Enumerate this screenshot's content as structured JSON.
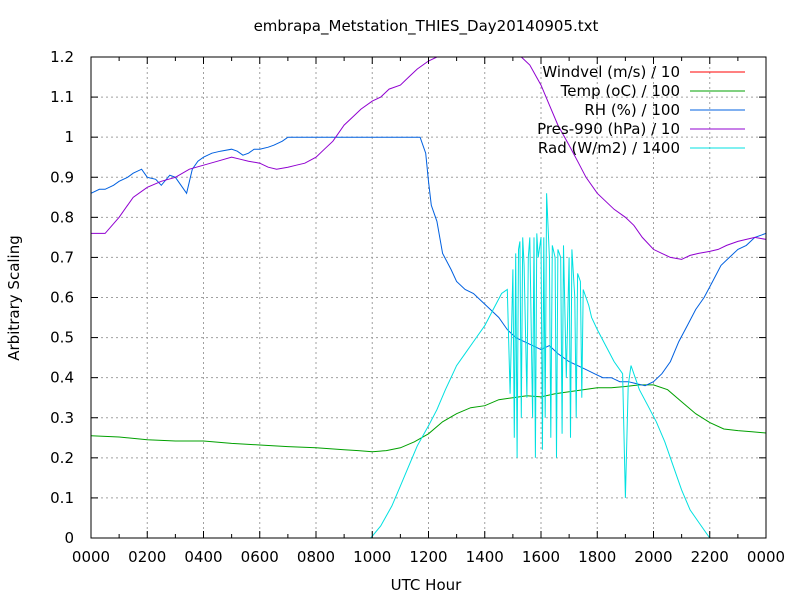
{
  "chart_data": {
    "type": "line",
    "title": "embrapa_Metstation_THIES_Day20140905.txt",
    "xlabel": "UTC Hour",
    "ylabel": "Arbitrary Scaling",
    "xlim": [
      0,
      24
    ],
    "ylim": [
      0,
      1.2
    ],
    "grid": true,
    "legend_position": "top-right",
    "x_tick_labels": [
      "0000",
      "0200",
      "0400",
      "0600",
      "0800",
      "1000",
      "1200",
      "1400",
      "1600",
      "1800",
      "2000",
      "2200",
      "0000"
    ],
    "y_tick_labels": [
      "0",
      "0.1",
      "0.2",
      "0.3",
      "0.4",
      "0.5",
      "0.6",
      "0.7",
      "0.8",
      "0.9",
      "1",
      "1.1",
      "1.2"
    ],
    "series": [
      {
        "name": "Windvel (m/s) / 10",
        "color": "#ff0000",
        "x": [],
        "y": []
      },
      {
        "name": "Temp (oC) / 100",
        "color": "#00a000",
        "x": [
          0,
          1,
          2,
          3,
          4,
          5,
          6,
          7,
          8,
          9,
          9.5,
          10,
          10.5,
          11,
          11.5,
          12,
          12.5,
          13,
          13.5,
          14,
          14.5,
          15,
          15.5,
          16,
          16.5,
          17,
          17.5,
          18,
          18.5,
          19,
          19.5,
          20,
          20.5,
          21,
          21.5,
          22,
          22.5,
          23,
          23.5,
          24
        ],
        "y": [
          0.255,
          0.252,
          0.245,
          0.242,
          0.242,
          0.236,
          0.232,
          0.228,
          0.225,
          0.22,
          0.218,
          0.215,
          0.218,
          0.225,
          0.24,
          0.26,
          0.29,
          0.31,
          0.325,
          0.33,
          0.345,
          0.35,
          0.355,
          0.352,
          0.36,
          0.365,
          0.37,
          0.375,
          0.375,
          0.378,
          0.382,
          0.382,
          0.37,
          0.34,
          0.31,
          0.288,
          0.272,
          0.268,
          0.265,
          0.262
        ]
      },
      {
        "name": "RH (%) / 100",
        "color": "#0060e0",
        "x": [
          0,
          0.3,
          0.5,
          0.8,
          1,
          1.3,
          1.5,
          1.8,
          2,
          2.3,
          2.5,
          2.8,
          3,
          3.2,
          3.4,
          3.6,
          3.8,
          4,
          4.3,
          4.6,
          5,
          5.2,
          5.4,
          5.6,
          5.8,
          6,
          6.3,
          6.5,
          6.8,
          7,
          7.5,
          8,
          8.5,
          9,
          9.5,
          10,
          10.5,
          11,
          11.5,
          11.7,
          11.9,
          12,
          12.1,
          12.3,
          12.5,
          12.8,
          13,
          13.3,
          13.6,
          13.9,
          14.2,
          14.5,
          14.8,
          15.1,
          15.4,
          15.7,
          16,
          16.3,
          16.6,
          17,
          17.3,
          17.6,
          17.9,
          18.2,
          18.5,
          18.8,
          19.1,
          19.4,
          19.7,
          20,
          20.3,
          20.6,
          20.9,
          21.2,
          21.5,
          21.8,
          22.1,
          22.4,
          22.7,
          23,
          23.3,
          23.6,
          24
        ],
        "y": [
          0.86,
          0.87,
          0.87,
          0.88,
          0.89,
          0.9,
          0.91,
          0.92,
          0.9,
          0.895,
          0.88,
          0.905,
          0.9,
          0.88,
          0.86,
          0.92,
          0.94,
          0.95,
          0.96,
          0.965,
          0.97,
          0.965,
          0.955,
          0.96,
          0.97,
          0.97,
          0.975,
          0.98,
          0.99,
          1.0,
          1.0,
          1.0,
          1.0,
          1.0,
          1.0,
          1.0,
          1.0,
          1.0,
          1.0,
          1.0,
          0.96,
          0.89,
          0.83,
          0.79,
          0.71,
          0.67,
          0.64,
          0.62,
          0.61,
          0.59,
          0.57,
          0.55,
          0.52,
          0.5,
          0.49,
          0.48,
          0.47,
          0.48,
          0.46,
          0.44,
          0.43,
          0.42,
          0.41,
          0.4,
          0.4,
          0.39,
          0.39,
          0.385,
          0.38,
          0.39,
          0.41,
          0.44,
          0.49,
          0.53,
          0.57,
          0.6,
          0.64,
          0.68,
          0.7,
          0.72,
          0.73,
          0.75,
          0.76
        ]
      },
      {
        "name": "Pres-990 (hPa) / 10",
        "color": "#9000d0",
        "x": [
          0,
          0.5,
          1,
          1.5,
          2,
          2.5,
          3,
          3.5,
          4,
          4.5,
          5,
          5.3,
          5.6,
          6,
          6.3,
          6.6,
          7,
          7.3,
          7.6,
          8,
          8.3,
          8.6,
          9,
          9.3,
          9.6,
          10,
          10.3,
          10.6,
          11,
          11.3,
          11.6,
          12,
          12.3,
          12.6,
          13,
          13.3,
          13.6,
          14,
          14.3,
          14.6,
          15,
          15.3,
          15.6,
          16,
          16.3,
          16.6,
          17,
          17.3,
          17.6,
          18,
          18.3,
          18.6,
          19,
          19.3,
          19.6,
          20,
          20.3,
          20.6,
          21,
          21.3,
          21.6,
          22,
          22.3,
          22.6,
          23,
          23.3,
          23.6,
          24
        ],
        "y": [
          0.76,
          0.76,
          0.8,
          0.85,
          0.875,
          0.89,
          0.9,
          0.92,
          0.93,
          0.94,
          0.95,
          0.945,
          0.94,
          0.935,
          0.925,
          0.92,
          0.925,
          0.93,
          0.935,
          0.95,
          0.97,
          0.99,
          1.03,
          1.05,
          1.07,
          1.09,
          1.1,
          1.12,
          1.13,
          1.15,
          1.17,
          1.19,
          1.2,
          1.2,
          1.2,
          1.2,
          1.2,
          1.2,
          1.2,
          1.2,
          1.2,
          1.2,
          1.18,
          1.13,
          1.08,
          1.03,
          0.98,
          0.94,
          0.9,
          0.86,
          0.84,
          0.82,
          0.8,
          0.78,
          0.75,
          0.72,
          0.71,
          0.7,
          0.695,
          0.705,
          0.71,
          0.715,
          0.72,
          0.73,
          0.74,
          0.745,
          0.75,
          0.745
        ]
      },
      {
        "name": "Rad (W/m2) / 1400",
        "color": "#00e0e0",
        "x": [
          9.95,
          10.3,
          10.7,
          11,
          11.3,
          11.6,
          12,
          12.3,
          12.6,
          12.8,
          13,
          13.3,
          13.6,
          14,
          14.3,
          14.6,
          14.8,
          14.9,
          15.0,
          15.05,
          15.1,
          15.15,
          15.2,
          15.25,
          15.3,
          15.35,
          15.4,
          15.5,
          15.55,
          15.6,
          15.7,
          15.75,
          15.8,
          15.85,
          15.9,
          16.0,
          16.05,
          16.1,
          16.15,
          16.2,
          16.3,
          16.35,
          16.4,
          16.5,
          16.55,
          16.6,
          16.7,
          16.75,
          16.8,
          16.9,
          17.0,
          17.05,
          17.1,
          17.2,
          17.25,
          17.3,
          17.4,
          17.45,
          17.5,
          17.6,
          17.7,
          17.8,
          18.0,
          18.3,
          18.6,
          18.9,
          19.0,
          19.1,
          19.2,
          19.5,
          19.8,
          20.1,
          20.4,
          20.7,
          21.0,
          21.3,
          21.6,
          21.9,
          22.0
        ],
        "y": [
          0,
          0.03,
          0.08,
          0.13,
          0.18,
          0.23,
          0.28,
          0.32,
          0.37,
          0.4,
          0.43,
          0.46,
          0.49,
          0.53,
          0.57,
          0.61,
          0.62,
          0.36,
          0.67,
          0.25,
          0.71,
          0.2,
          0.72,
          0.74,
          0.3,
          0.75,
          0.68,
          0.35,
          0.7,
          0.75,
          0.3,
          0.75,
          0.2,
          0.76,
          0.7,
          0.75,
          0.22,
          0.75,
          0.3,
          0.86,
          0.7,
          0.25,
          0.73,
          0.7,
          0.2,
          0.72,
          0.7,
          0.26,
          0.73,
          0.4,
          0.7,
          0.25,
          0.72,
          0.6,
          0.3,
          0.66,
          0.64,
          0.35,
          0.62,
          0.6,
          0.58,
          0.55,
          0.52,
          0.48,
          0.44,
          0.41,
          0.1,
          0.38,
          0.43,
          0.37,
          0.33,
          0.29,
          0.24,
          0.18,
          0.12,
          0.07,
          0.04,
          0.01,
          0
        ]
      }
    ]
  }
}
